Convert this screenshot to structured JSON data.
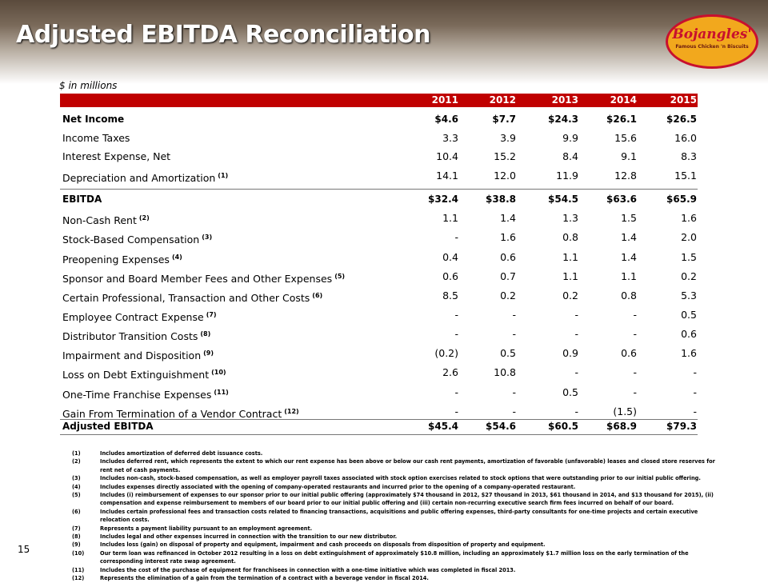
{
  "header": {
    "title": "Adjusted EBITDA Reconciliation",
    "logo": "Bojangles'",
    "tagline": "Famous Chicken 'n Biscuits"
  },
  "table": {
    "unit": "$ in millions",
    "columns": [
      "2011",
      "2012",
      "2013",
      "2014",
      "2015"
    ],
    "rows": [
      {
        "label": "Net Income",
        "bold": true,
        "values": [
          "$4.6",
          "$7.7",
          "$24.3",
          "$26.1",
          "$26.5"
        ]
      },
      {
        "label": "Income Taxes",
        "values": [
          "3.3",
          "3.9",
          "9.9",
          "15.6",
          "16.0"
        ]
      },
      {
        "label": "Interest Expense, Net",
        "values": [
          "10.4",
          "15.2",
          "8.4",
          "9.1",
          "8.3"
        ]
      },
      {
        "label": "Depreciation and Amortization",
        "note": "(1)",
        "values": [
          "14.1",
          "12.0",
          "11.9",
          "12.8",
          "15.1"
        ]
      },
      {
        "label": "EBITDA",
        "bold": true,
        "values": [
          "$32.4",
          "$38.8",
          "$54.5",
          "$63.6",
          "$65.9"
        ]
      },
      {
        "label": "Non-Cash Rent",
        "note": "(2)",
        "values": [
          "1.1",
          "1.4",
          "1.3",
          "1.5",
          "1.6"
        ]
      },
      {
        "label": "Stock-Based Compensation",
        "note": "(3)",
        "values": [
          "-",
          "1.6",
          "0.8",
          "1.4",
          "2.0"
        ]
      },
      {
        "label": "Preopening Expenses",
        "note": "(4)",
        "values": [
          "0.4",
          "0.6",
          "1.1",
          "1.4",
          "1.5"
        ]
      },
      {
        "label": "Sponsor and Board Member Fees and Other Expenses",
        "note": "(5)",
        "values": [
          "0.6",
          "0.7",
          "1.1",
          "1.1",
          "0.2"
        ]
      },
      {
        "label": "Certain Professional, Transaction and Other Costs",
        "note": "(6)",
        "values": [
          "8.5",
          "0.2",
          "0.2",
          "0.8",
          "5.3"
        ]
      },
      {
        "label": "Employee Contract Expense",
        "note": "(7)",
        "values": [
          "-",
          "-",
          "-",
          "-",
          "0.5"
        ]
      },
      {
        "label": "Distributor Transition Costs",
        "note": "(8)",
        "values": [
          "-",
          "-",
          "-",
          "-",
          "0.6"
        ]
      },
      {
        "label": "Impairment and Disposition",
        "note": "(9)",
        "values": [
          "(0.2)",
          "0.5",
          "0.9",
          "0.6",
          "1.6"
        ]
      },
      {
        "label": "Loss on Debt Extinguishment",
        "note": "(10)",
        "values": [
          "2.6",
          "10.8",
          "-",
          "-",
          "-"
        ]
      },
      {
        "label": "One-Time Franchise Expenses",
        "note": "(11)",
        "values": [
          "-",
          "-",
          "0.5",
          "-",
          "-"
        ]
      },
      {
        "label": "Gain From Termination of a Vendor Contract",
        "note": "(12)",
        "values": [
          "-",
          "-",
          "-",
          "(1.5)",
          "-"
        ]
      },
      {
        "label": "Adjusted EBITDA",
        "bold": true,
        "values": [
          "$45.4",
          "$54.6",
          "$60.5",
          "$68.9",
          "$79.3"
        ]
      }
    ]
  },
  "footnotes": [
    {
      "num": "(1)",
      "text": "Includes amortization of deferred debt issuance costs."
    },
    {
      "num": "(2)",
      "text": "Includes deferred rent, which represents the extent to which our rent expense has been above or below our cash rent payments, amortization of favorable (unfavorable) leases and closed store reserves for rent net of cash payments."
    },
    {
      "num": "(3)",
      "text": "Includes non-cash, stock-based compensation, as well as employer payroll taxes associated with stock option exercises related to stock options that were outstanding prior to our initial public offering."
    },
    {
      "num": "(4)",
      "text": "Includes expenses directly associated with the opening of company-operated restaurants and incurred prior to the opening of a company-operated restaurant."
    },
    {
      "num": "(5)",
      "text": "Includes (i) reimbursement of expenses to our sponsor prior to our initial public offering (approximately $74 thousand in 2012, $27 thousand in 2013, $61 thousand in 2014, and $13 thousand for 2015), (ii) compensation and expense reimbursement to members of our board prior to our initial public offering and (iii) certain non-recurring executive search firm fees incurred on behalf of our board."
    },
    {
      "num": "(6)",
      "text": "Includes certain professional fees and transaction costs related to financing transactions, acquisitions and public offering expenses, third-party consultants for one-time projects and certain executive relocation costs."
    },
    {
      "num": "(7)",
      "text": "Represents a payment liability pursuant to an employment agreement."
    },
    {
      "num": "(8)",
      "text": "Includes legal and other expenses incurred in connection with the transition to our new distributor."
    },
    {
      "num": "(9)",
      "text": "Includes loss (gain) on disposal of property and equipment, impairment and cash proceeds on disposals from disposition of property and equipment."
    },
    {
      "num": "(10)",
      "text": "Our term loan was refinanced in October 2012 resulting in a loss on debt extinguishment of approximately $10.8 million, including an approximately $1.7 million loss on the early termination of the corresponding interest rate swap agreement."
    },
    {
      "num": "(11)",
      "text": "Includes the cost of the purchase of equipment for franchisees in connection with a one-time initiative which was completed in fiscal 2013."
    },
    {
      "num": "(12)",
      "text": "Represents the elimination of a gain from the termination of a contract with a beverage vendor in fiscal 2014."
    }
  ],
  "page_number": "15"
}
